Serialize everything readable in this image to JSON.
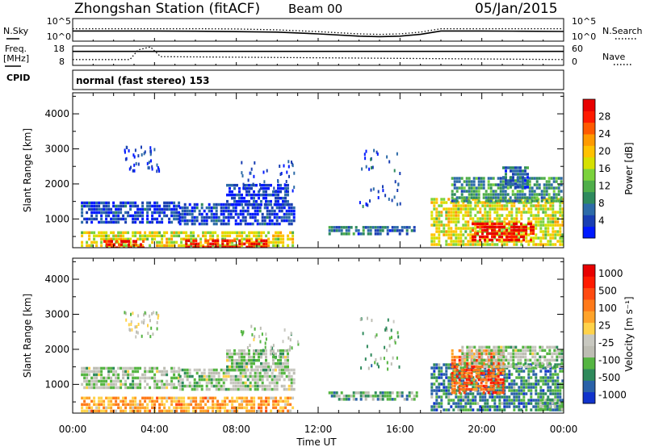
{
  "header": {
    "station": "Zhongshan Station (fitACF)",
    "beam": "Beam 00",
    "date": "05/Jan/2015"
  },
  "side_labels": {
    "nsky": "N.Sky",
    "freq": "Freq.",
    "freq_unit": "[MHz]",
    "cpid": "CPID",
    "nsearch": "N.Search",
    "nave": "Nave"
  },
  "cpid_text": "normal (fast stereo) 153",
  "chart_data": [
    {
      "type": "line",
      "name": "noise",
      "ylabels_left": [
        "10^5",
        "10^0"
      ],
      "ylabels_right": [
        "10^5",
        "10^0"
      ],
      "series": [
        {
          "name": "N.Sky",
          "style": "solid",
          "x_hours": [
            0,
            2,
            4,
            6,
            8,
            10,
            12,
            14,
            15,
            16,
            17,
            18,
            20,
            22,
            24
          ],
          "y": [
            0.45,
            0.45,
            0.45,
            0.44,
            0.42,
            0.4,
            0.32,
            0.22,
            0.2,
            0.22,
            0.3,
            0.45,
            0.45,
            0.44,
            0.43
          ]
        },
        {
          "name": "N.Search",
          "style": "dotted",
          "x_hours": [
            0,
            2,
            4,
            6,
            8,
            10,
            12,
            14,
            15,
            16,
            17,
            18,
            20,
            22,
            24
          ],
          "y": [
            0.55,
            0.55,
            0.55,
            0.55,
            0.54,
            0.5,
            0.42,
            0.32,
            0.3,
            0.32,
            0.4,
            0.55,
            0.55,
            0.55,
            0.55
          ]
        }
      ]
    },
    {
      "type": "line",
      "name": "frequency-nave",
      "ylabels_left": [
        "18",
        "8"
      ],
      "ylabels_right": [
        "60",
        "0"
      ],
      "series": [
        {
          "name": "Freq.",
          "style": "solid",
          "x_hours": [
            0,
            24
          ],
          "y": [
            0.72,
            0.72
          ]
        },
        {
          "name": "Nave",
          "style": "dotted",
          "x_hours": [
            0,
            2.8,
            3.2,
            3.8,
            4.3,
            24
          ],
          "y": [
            0.3,
            0.3,
            0.8,
            0.95,
            0.45,
            0.3
          ]
        }
      ]
    },
    {
      "type": "heatmap",
      "name": "power",
      "ylabel": "Slant Range [km]",
      "yticks": [
        1000,
        2000,
        3000,
        4000
      ],
      "ylim": [
        180,
        4600
      ],
      "xlim": [
        0,
        24
      ],
      "colorbar": {
        "label": "Power [dB]",
        "ticks": [
          "4",
          "8",
          "12",
          "16",
          "20",
          "24",
          "28"
        ],
        "colors": [
          "#0019ff",
          "#1a3fb3",
          "#2d6ba8",
          "#2e8a5e",
          "#4fae4a",
          "#7bd23c",
          "#d6e000",
          "#ffc200",
          "#ff9a00",
          "#ff5a00",
          "#ff1a00",
          "#e80000"
        ]
      },
      "regions": [
        {
          "x": [
            0.4,
            5.2
          ],
          "r": [
            900,
            1500
          ],
          "level": 0.12
        },
        {
          "x": [
            5.2,
            10.8
          ],
          "r": [
            850,
            1450
          ],
          "level": 0.12
        },
        {
          "x": [
            7.5,
            10.5
          ],
          "r": [
            1400,
            2000
          ],
          "level": 0.1
        },
        {
          "x": [
            0.4,
            10.8
          ],
          "r": [
            200,
            650
          ],
          "level": 0.55
        },
        {
          "x": [
            1.5,
            3.5
          ],
          "r": [
            200,
            400
          ],
          "level": 0.9
        },
        {
          "x": [
            5.5,
            9.5
          ],
          "r": [
            200,
            420
          ],
          "level": 0.92
        },
        {
          "x": [
            12.5,
            16.8
          ],
          "r": [
            550,
            800
          ],
          "level": 0.2
        },
        {
          "x": [
            17.5,
            23.9
          ],
          "r": [
            300,
            1600
          ],
          "level": 0.55
        },
        {
          "x": [
            18.5,
            23.9
          ],
          "r": [
            1500,
            2200
          ],
          "level": 0.3
        },
        {
          "x": [
            19.5,
            22.5
          ],
          "r": [
            400,
            900
          ],
          "level": 0.95
        },
        {
          "x": [
            21,
            22.2
          ],
          "r": [
            1900,
            2500
          ],
          "level": 0.2
        }
      ],
      "sparse": [
        {
          "x": [
            2.5,
            4.2
          ],
          "r": [
            2400,
            3100
          ],
          "level": 0.1
        },
        {
          "x": [
            8.2,
            11
          ],
          "r": [
            1800,
            2700
          ],
          "level": 0.1
        },
        {
          "x": [
            14,
            16
          ],
          "r": [
            1400,
            3000
          ],
          "level": 0.15
        }
      ]
    },
    {
      "type": "heatmap",
      "name": "velocity",
      "ylabel": "Slant Range [km]",
      "yticks": [
        1000,
        2000,
        3000,
        4000
      ],
      "ylim": [
        180,
        4600
      ],
      "xlim": [
        0,
        24
      ],
      "colorbar": {
        "label": "Velocity [m s⁻¹]",
        "ticks": [
          "1000",
          "500",
          "100",
          "25",
          "-25",
          "-100",
          "-500",
          "-1000"
        ],
        "colors": [
          "#1033cc",
          "#2a62a8",
          "#2f8a5c",
          "#55b542",
          "#bdbdb3",
          "#c8c8c0",
          "#ffd24a",
          "#ffa32a",
          "#ff7a1a",
          "#ff4a10",
          "#ff1a00",
          "#e80000"
        ]
      },
      "regions": [
        {
          "x": [
            0.4,
            5.2
          ],
          "r": [
            900,
            1500
          ],
          "level": 0.37
        },
        {
          "x": [
            5.2,
            10.8
          ],
          "r": [
            850,
            1450
          ],
          "level": 0.37
        },
        {
          "x": [
            7.5,
            10.5
          ],
          "r": [
            1400,
            2000
          ],
          "level": 0.37
        },
        {
          "x": [
            0.4,
            10.8
          ],
          "r": [
            200,
            650
          ],
          "level": 0.62
        },
        {
          "x": [
            12.5,
            16.8
          ],
          "r": [
            550,
            800
          ],
          "level": 0.25
        },
        {
          "x": [
            17.5,
            23.9
          ],
          "r": [
            300,
            1600
          ],
          "level": 0.2
        },
        {
          "x": [
            18.5,
            21
          ],
          "r": [
            800,
            2000
          ],
          "level": 0.75
        },
        {
          "x": [
            19,
            23.9
          ],
          "r": [
            1500,
            2100
          ],
          "level": 0.37
        },
        {
          "x": [
            22.8,
            23.9
          ],
          "r": [
            300,
            600
          ],
          "level": 0.28
        }
      ],
      "sparse": [
        {
          "x": [
            2.5,
            4.2
          ],
          "r": [
            2400,
            3100
          ],
          "level": 0.4
        },
        {
          "x": [
            8.2,
            11
          ],
          "r": [
            1800,
            2700
          ],
          "level": 0.37
        },
        {
          "x": [
            14,
            16
          ],
          "r": [
            1400,
            3000
          ],
          "level": 0.3
        }
      ]
    }
  ],
  "xaxis": {
    "ticks": [
      "00:00",
      "04:00",
      "08:00",
      "12:00",
      "16:00",
      "20:00",
      "00:00"
    ],
    "label": "Time UT"
  }
}
